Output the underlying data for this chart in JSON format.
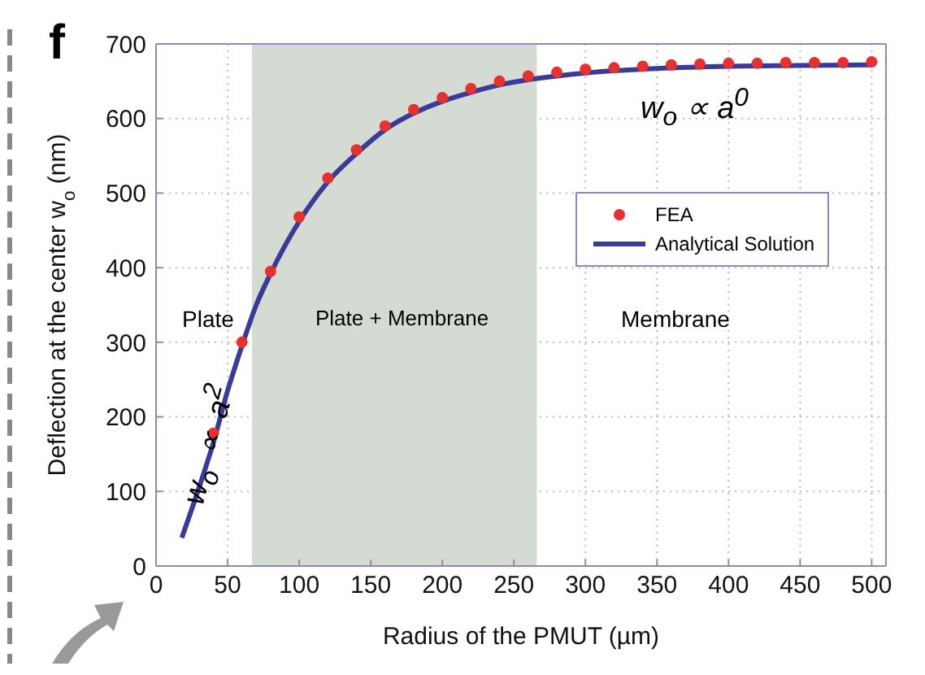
{
  "chart_data": {
    "type": "line",
    "xlabel": "Radius of the PMUT  (µm)",
    "ylabel": "Deflection at the center w$_{o}$ (nm)",
    "xlim": [
      0,
      510
    ],
    "xticks": [
      0,
      50,
      100,
      150,
      200,
      250,
      300,
      350,
      400,
      450,
      500
    ],
    "ylim": [
      0,
      700
    ],
    "yticks": [
      0,
      100,
      200,
      300,
      400,
      500,
      600,
      700
    ],
    "grid": true,
    "legend": "right",
    "bands": [
      {
        "axis": "x",
        "from": 67,
        "to": 266,
        "color": "#d3dbd3"
      }
    ],
    "annotations": [
      "f",
      "Plate",
      "Plate + Membrane",
      "Membrane",
      "w$_{o}$ ∝ a$^{2}$",
      "w$_{o}$ ∝ a$^{0}$"
    ],
    "series": [
      {
        "name": "FEA",
        "type": "scatter",
        "marker": "circle",
        "color": "#e8302e",
        "x": [
          40,
          60,
          80,
          100,
          120,
          140,
          160,
          180,
          200,
          220,
          240,
          260,
          280,
          300,
          320,
          340,
          360,
          380,
          400,
          420,
          440,
          460,
          480,
          500
        ],
        "values": [
          178,
          300,
          395,
          468,
          520,
          558,
          590,
          612,
          628,
          640,
          650,
          657,
          662,
          666,
          668,
          670,
          672,
          673,
          674,
          674,
          675,
          675,
          675,
          676
        ]
      },
      {
        "name": "Analytical Solution",
        "type": "line",
        "marker": "none",
        "line_style": "solid",
        "color": "#3a3a99",
        "x": [
          18,
          30,
          40,
          50,
          60,
          70,
          80,
          100,
          120,
          140,
          160,
          180,
          200,
          220,
          240,
          260,
          280,
          300,
          350,
          400,
          450,
          500
        ],
        "values": [
          38,
          105,
          165,
          235,
          295,
          350,
          392,
          462,
          515,
          553,
          585,
          607,
          623,
          635,
          645,
          652,
          657,
          661,
          667,
          670,
          671,
          672
        ]
      }
    ]
  }
}
